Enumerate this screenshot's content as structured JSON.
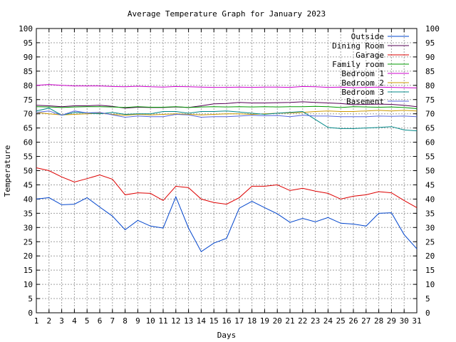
{
  "chart_data": {
    "type": "line",
    "title": "Average Temperature Graph for January 2023",
    "xlabel": "Days",
    "ylabel": "Temperature",
    "x": [
      1,
      2,
      3,
      4,
      5,
      6,
      7,
      8,
      9,
      10,
      11,
      12,
      13,
      14,
      15,
      16,
      17,
      18,
      19,
      20,
      21,
      22,
      23,
      24,
      25,
      26,
      27,
      28,
      29,
      30,
      31
    ],
    "xlim": [
      1,
      31
    ],
    "ylim": [
      0,
      100
    ],
    "ytick_step": 5,
    "grid": true,
    "legend_position": "top-right",
    "series": [
      {
        "name": "Outside",
        "color": "#0044cc",
        "values": [
          40,
          40.5,
          38,
          38.2,
          40.5,
          37.2,
          34,
          29.2,
          32.5,
          30.5,
          29.8,
          40.8,
          29.8,
          21.5,
          24.5,
          26.2,
          36.8,
          39.2,
          37,
          34.8,
          31.8,
          33.2,
          32,
          33.5,
          31.5,
          31.2,
          30.5,
          35,
          35.2,
          27.5,
          22.5
        ]
      },
      {
        "name": "Dining Room",
        "color": "#550055",
        "values": [
          73,
          72.8,
          72.5,
          72.8,
          72.8,
          73,
          72.6,
          72,
          72.3,
          72.2,
          72.2,
          72.4,
          72.2,
          72.8,
          73.5,
          73.6,
          74,
          73.8,
          73.8,
          73.9,
          74,
          74.2,
          74,
          73.8,
          73.6,
          73.2,
          73.3,
          73.4,
          73.3,
          73,
          72.5
        ]
      },
      {
        "name": "Garage",
        "color": "#dd0000",
        "values": [
          51,
          50,
          47.8,
          46,
          47.2,
          48.5,
          47,
          41.5,
          42.2,
          42,
          39.5,
          44.5,
          44,
          40,
          38.8,
          38.2,
          40.5,
          44.5,
          44.5,
          45,
          43,
          43.8,
          42.8,
          42,
          40,
          41,
          41.5,
          42.6,
          42.2,
          39.5,
          37
        ]
      },
      {
        "name": "Family room",
        "color": "#009900",
        "values": [
          72.5,
          72.4,
          72.2,
          72.4,
          72.5,
          72.5,
          72.4,
          72.2,
          72.5,
          72.3,
          72.3,
          72.5,
          72.2,
          72.4,
          72.5,
          72.4,
          72.5,
          72.4,
          72.5,
          72.4,
          72.5,
          72.5,
          72.6,
          72.5,
          72.2,
          72.5,
          72.4,
          72.3,
          72.4,
          72.2,
          71.8
        ]
      },
      {
        "name": "Bedroom 1",
        "color": "#cc00cc",
        "values": [
          80,
          80.3,
          80,
          79.8,
          79.8,
          79.8,
          79.6,
          79.5,
          79.7,
          79.5,
          79.4,
          79.6,
          79.5,
          79.4,
          79.3,
          79.3,
          79.4,
          79.3,
          79.4,
          79.4,
          79.3,
          79.6,
          79.5,
          79.3,
          79.4,
          79.2,
          79.3,
          79.4,
          79.3,
          79.2,
          79.1
        ]
      },
      {
        "name": "Bedroom 2",
        "color": "#cc9900",
        "values": [
          70.5,
          70,
          69.6,
          69.8,
          70,
          70.2,
          69.8,
          69.5,
          69.8,
          69.6,
          69.8,
          70,
          69.8,
          69.6,
          69.8,
          70,
          70,
          69.8,
          70,
          70.2,
          70.3,
          70.5,
          70.8,
          71,
          70.8,
          70.8,
          71,
          71.2,
          71,
          71.2,
          71
        ]
      },
      {
        "name": "Bedroom 3",
        "color": "#008888",
        "values": [
          71,
          72,
          69.5,
          70.5,
          70.3,
          70,
          70.5,
          69.8,
          70,
          70,
          70.8,
          70.8,
          70.2,
          70.8,
          70.8,
          71,
          70.6,
          70.2,
          69.8,
          70.2,
          70.5,
          70.8,
          68,
          65.2,
          64.8,
          64.8,
          65,
          65.2,
          65.5,
          64.3,
          64
        ]
      },
      {
        "name": "Basement",
        "color": "#5566dd",
        "values": [
          70.5,
          71,
          69.5,
          71,
          70.3,
          70.5,
          69.6,
          68.8,
          69.2,
          69,
          69,
          69.8,
          69.6,
          68.8,
          69,
          69,
          69.2,
          69.5,
          69.3,
          69.4,
          69,
          69.5,
          69.2,
          69.2,
          69,
          69,
          69,
          69.2,
          69.1,
          69.2,
          69
        ]
      }
    ]
  }
}
